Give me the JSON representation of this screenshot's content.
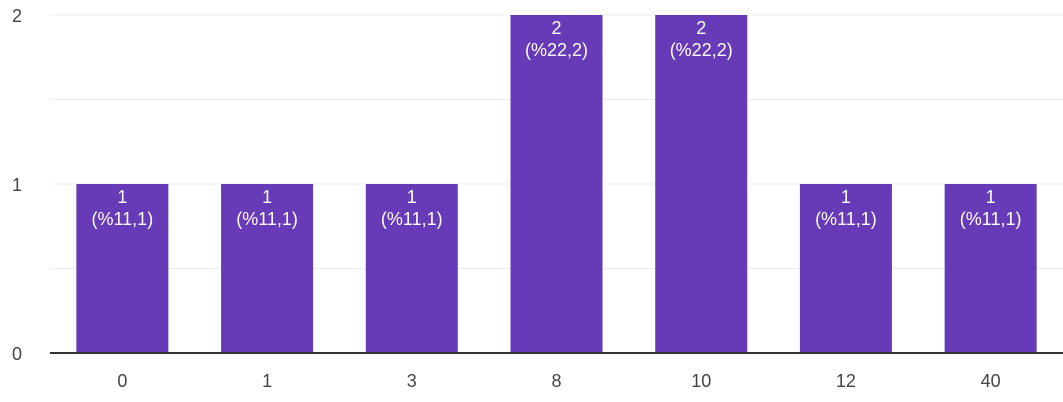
{
  "chart_data": {
    "type": "bar",
    "categories": [
      "0",
      "1",
      "3",
      "8",
      "10",
      "12",
      "40"
    ],
    "values": [
      1,
      1,
      1,
      2,
      2,
      1,
      1
    ],
    "data_labels": [
      [
        "1",
        "(%11,1)"
      ],
      [
        "1",
        "(%11,1)"
      ],
      [
        "1",
        "(%11,1)"
      ],
      [
        "2",
        "(%22,2)"
      ],
      [
        "2",
        "(%22,2)"
      ],
      [
        "1",
        "(%11,1)"
      ],
      [
        "1",
        "(%11,1)"
      ]
    ],
    "y_ticks": [
      "0",
      "1",
      "2"
    ],
    "ylim": [
      0,
      2
    ],
    "title": "",
    "xlabel": "",
    "ylabel": "",
    "grid": true,
    "legend": "none",
    "colors": {
      "bar": "#673ab7",
      "grid": "#ececec",
      "axis": "#333333",
      "tick_text": "#444444",
      "label_text": "#ffffff"
    }
  }
}
